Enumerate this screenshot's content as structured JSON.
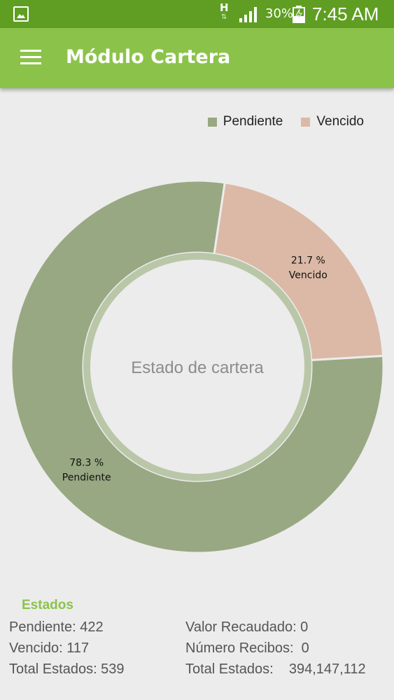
{
  "status_bar": {
    "network_type": "H",
    "battery_percent": "30%",
    "time": "7:45 AM"
  },
  "app_bar": {
    "title": "Módulo Cartera",
    "menu_icon": "hamburger-menu-icon"
  },
  "colors": {
    "status_bar": "#5f9e22",
    "app_bar": "#8bc34a",
    "pendiente": "#98a882",
    "vencido": "#dbb9a6",
    "accent_text": "#8bc34a"
  },
  "chart_data": {
    "type": "pie",
    "variant": "donut",
    "center_text": "Estado de cartera",
    "legend_position": "top-right",
    "legend": [
      {
        "name": "Pendiente",
        "color": "#98a882"
      },
      {
        "name": "Vencido",
        "color": "#dbb9a6"
      }
    ],
    "slices": [
      {
        "name": "Pendiente",
        "value": 78.3,
        "label_pct": "78.3 %",
        "color": "#98a882"
      },
      {
        "name": "Vencido",
        "value": 21.7,
        "label_pct": "21.7 %",
        "color": "#dbb9a6"
      }
    ]
  },
  "summary": {
    "title": "Estados",
    "left": [
      "Pendiente: 422",
      "Vencido: 117",
      "Total Estados: 539"
    ],
    "right": [
      "Valor Recaudado: 0",
      "Número Recibos:  0",
      "Total Estados:    394,147,112"
    ]
  }
}
